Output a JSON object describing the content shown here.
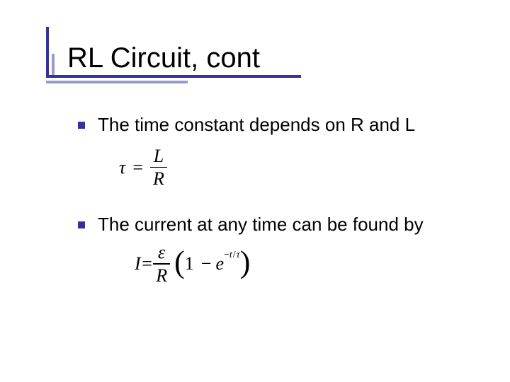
{
  "slide": {
    "title": "RL Circuit, cont",
    "accent_color": "#333399",
    "accent_color_light": "#9999cc",
    "background_color": "#ffffff",
    "text_color": "#000000",
    "title_fontsize": 40,
    "body_fontsize": 26,
    "formula_fontsize": 26,
    "font_family_body": "Verdana",
    "font_family_formula": "Times New Roman",
    "bullets": [
      {
        "text": "The time constant depends on R and L",
        "formula": {
          "lhs": "τ",
          "eq": "=",
          "numerator": "L",
          "denominator": "R"
        }
      },
      {
        "text": "The current at any time can be found by",
        "formula": {
          "lhs": "I",
          "eq": "=",
          "numerator": "ε",
          "denominator": "R",
          "paren_open": "(",
          "one": "1",
          "minus": "−",
          "e": "e",
          "exp_minus": "−",
          "exp_t": "t",
          "exp_slash": "/",
          "exp_tau": "τ",
          "paren_close": ")"
        }
      }
    ]
  }
}
